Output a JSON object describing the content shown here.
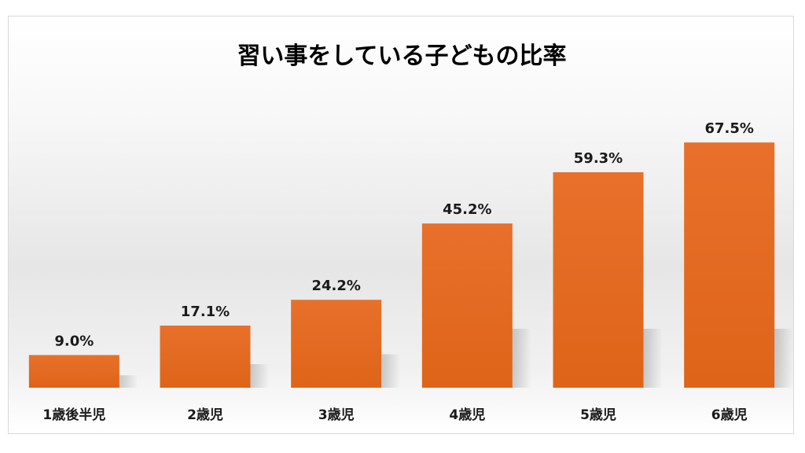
{
  "chart_data": {
    "type": "bar",
    "title": "習い事をしている子どもの比率",
    "categories": [
      "1歳後半児",
      "2歳児",
      "3歳児",
      "4歳児",
      "5歳児",
      "6歳児"
    ],
    "values": [
      9.0,
      17.1,
      24.2,
      45.2,
      59.3,
      67.5
    ],
    "data_labels": [
      "9.0%",
      "17.1%",
      "24.2%",
      "45.2%",
      "59.3%",
      "67.5%"
    ],
    "unit": "%",
    "xlabel": "",
    "ylabel": "",
    "ylim": [
      0,
      100
    ],
    "grid": false,
    "legend": "none",
    "bar_color": "#E8702A",
    "bar_color_dark": "#DE6419"
  }
}
